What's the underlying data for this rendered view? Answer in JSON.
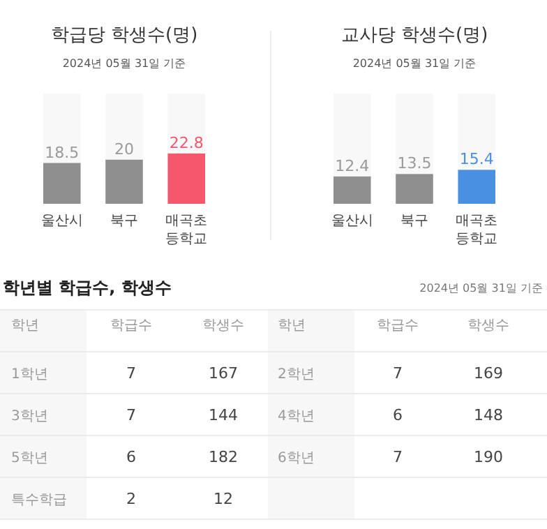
{
  "chart_data": [
    {
      "type": "bar",
      "title": "학급당 학생수(명)",
      "subtitle": "2024년 05월 31일 기준",
      "categories": [
        "울산시",
        "북구",
        "매곡초\n등학교"
      ],
      "values": [
        18.5,
        20,
        22.8
      ],
      "colors": [
        "#8f8f8f",
        "#8f8f8f",
        "#f5576c"
      ],
      "ylim": [
        0,
        50
      ],
      "tick_labels": "x",
      "data_labels": true
    },
    {
      "type": "bar",
      "title": "교사당 학생수(명)",
      "subtitle": "2024년 05월 31일 기준",
      "categories": [
        "울산시",
        "북구",
        "매곡초\n등학교"
      ],
      "values": [
        12.4,
        13.5,
        15.4
      ],
      "colors": [
        "#8f8f8f",
        "#8f8f8f",
        "#4a90e2"
      ],
      "ylim": [
        0,
        50
      ],
      "tick_labels": "x",
      "data_labels": true
    },
    {
      "type": "other",
      "title": "학년별 학급수, 학생수",
      "subtitle": "2024년 05월 31일 기준",
      "annotations": [
        "학년",
        "학급수",
        "학생수",
        "학년",
        "학급수",
        "학생수",
        "1학년",
        "7",
        "167",
        "2학년",
        "7",
        "169",
        "3학년",
        "7",
        "144",
        "4학년",
        "6",
        "148",
        "5학년",
        "6",
        "182",
        "6학년",
        "7",
        "190",
        "특수학급",
        "2",
        "12"
      ]
    }
  ]
}
